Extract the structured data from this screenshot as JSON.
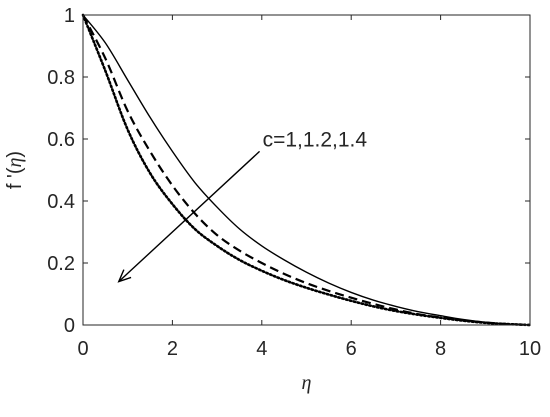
{
  "chart_data": {
    "type": "line",
    "title": "",
    "xlabel": "η",
    "ylabel": {
      "prefix": "f '(",
      "symbol": "η",
      "suffix": ")"
    },
    "xlim": [
      0,
      10
    ],
    "ylim": [
      0,
      1
    ],
    "x_ticks": [
      "0",
      "2",
      "4",
      "6",
      "8",
      "10"
    ],
    "y_ticks": [
      "0",
      "0.2",
      "0.4",
      "0.6",
      "0.8",
      "1"
    ],
    "grid": false,
    "legend": "none",
    "annotation": {
      "text": "c=1,1.2,1.4",
      "arrow_from": [
        3.95,
        0.56
      ],
      "arrow_to": [
        0.8,
        0.14
      ]
    },
    "x": [
      0,
      0.5,
      1,
      1.5,
      2,
      2.5,
      3,
      3.5,
      4,
      4.5,
      5,
      5.5,
      6,
      6.5,
      7,
      7.5,
      8,
      8.5,
      9,
      9.5,
      10
    ],
    "series": [
      {
        "style": "solid",
        "color": "#000000",
        "values": [
          1.0,
          0.91,
          0.79,
          0.67,
          0.56,
          0.46,
          0.38,
          0.31,
          0.255,
          0.21,
          0.17,
          0.135,
          0.105,
          0.08,
          0.06,
          0.043,
          0.03,
          0.018,
          0.009,
          0.003,
          0.0
        ]
      },
      {
        "style": "dashed",
        "color": "#000000",
        "values": [
          1.0,
          0.86,
          0.69,
          0.56,
          0.45,
          0.36,
          0.29,
          0.24,
          0.2,
          0.165,
          0.135,
          0.11,
          0.088,
          0.068,
          0.05,
          0.035,
          0.024,
          0.015,
          0.008,
          0.003,
          0.0
        ]
      },
      {
        "style": "dotted",
        "color": "#000000",
        "values": [
          1.0,
          0.82,
          0.63,
          0.49,
          0.39,
          0.31,
          0.255,
          0.21,
          0.175,
          0.145,
          0.12,
          0.098,
          0.078,
          0.06,
          0.045,
          0.033,
          0.023,
          0.014,
          0.007,
          0.003,
          0.0
        ]
      }
    ]
  }
}
